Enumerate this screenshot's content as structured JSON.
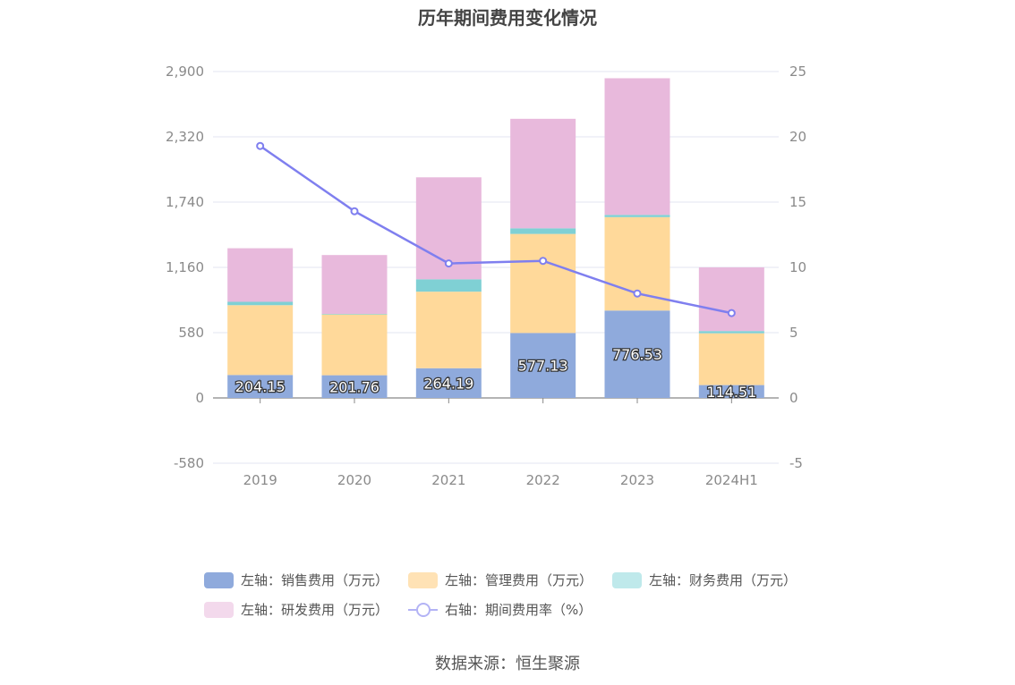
{
  "chart_data": {
    "type": "bar",
    "title": "历年期间费用变化情况",
    "categories": [
      "2019",
      "2020",
      "2021",
      "2022",
      "2023",
      "2024H1"
    ],
    "left_axis": {
      "min": -580,
      "max": 2900,
      "ticks": [
        "2,900",
        "2,320",
        "1,740",
        "1,160",
        "580",
        "0",
        "-580"
      ],
      "tick_values": [
        2900,
        2320,
        1740,
        1160,
        580,
        0,
        -580
      ]
    },
    "right_axis": {
      "min": -5,
      "max": 25,
      "ticks": [
        "25",
        "20",
        "15",
        "10",
        "5",
        "0",
        "-5"
      ],
      "tick_values": [
        25,
        20,
        15,
        10,
        5,
        0,
        -5
      ]
    },
    "series": [
      {
        "name": "左轴：销售费用（万元）",
        "type": "bar",
        "axis": "left",
        "color": "#8faadc",
        "values": [
          204.15,
          201.76,
          264.19,
          577.13,
          776.53,
          114.51
        ],
        "labels": [
          "204.15",
          "201.76",
          "264.19",
          "577.13",
          "776.53",
          "114.51"
        ]
      },
      {
        "name": "左轴：管理费用（万元）",
        "type": "bar",
        "axis": "left",
        "color": "#ffd99a",
        "values": [
          620,
          540,
          680,
          880,
          830,
          460
        ]
      },
      {
        "name": "左轴：财务费用（万元）",
        "type": "bar",
        "axis": "left",
        "color": "#7fd0d4",
        "values": [
          30,
          5,
          110,
          50,
          20,
          20
        ]
      },
      {
        "name": "左轴：研发费用（万元）",
        "type": "bar",
        "axis": "left",
        "color": "#e8b9dc",
        "values": [
          476,
          523,
          906,
          973,
          1214,
          566
        ]
      },
      {
        "name": "右轴：期间费用率（%）",
        "type": "line",
        "axis": "right",
        "color": "#7f7fef",
        "values": [
          19.3,
          14.3,
          10.3,
          10.5,
          8.0,
          6.5
        ]
      }
    ],
    "legend_placement": "bottom",
    "grid": true
  },
  "legend": {
    "rows": [
      [
        {
          "label": "左轴：销售费用（万元）",
          "color": "#8faadc",
          "kind": "bar"
        },
        {
          "label": "左轴：管理费用（万元）",
          "color": "#ffe2b5",
          "kind": "bar"
        },
        {
          "label": "左轴：财务费用（万元）",
          "color": "#bfe9eb",
          "kind": "bar"
        }
      ],
      [
        {
          "label": "左轴：研发费用（万元）",
          "color": "#f3d9ec",
          "kind": "bar"
        },
        {
          "label": "右轴：期间费用率（%）",
          "color": "#b3b3f5",
          "kind": "line"
        }
      ]
    ]
  },
  "source": "数据来源：恒生聚源"
}
